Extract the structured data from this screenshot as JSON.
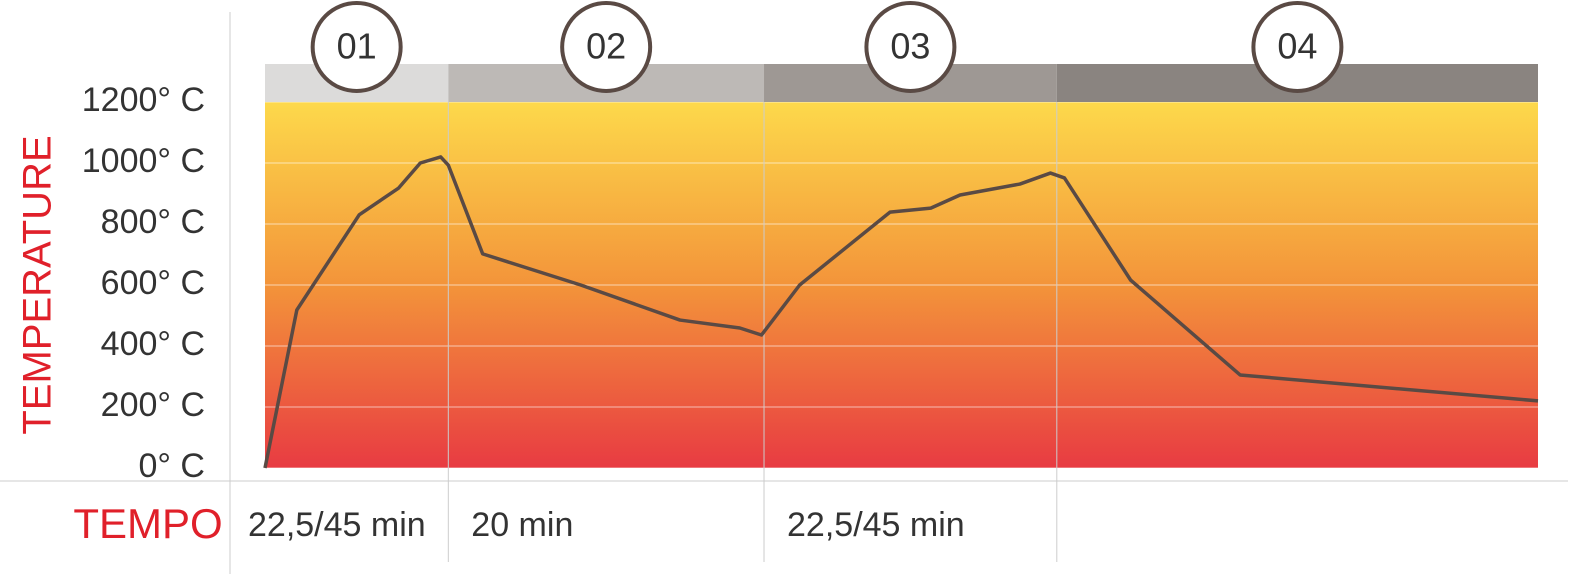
{
  "chart_data": {
    "type": "line",
    "y_label": "TEMPERATURE",
    "x_label": "TEMPO",
    "ylim": [
      0,
      1200
    ],
    "yticks": [
      {
        "value": 0,
        "label": "0° C"
      },
      {
        "value": 200,
        "label": "200° C"
      },
      {
        "value": 400,
        "label": "400° C"
      },
      {
        "value": 600,
        "label": "600° C"
      },
      {
        "value": 800,
        "label": "800° C"
      },
      {
        "value": 1000,
        "label": "1000° C"
      },
      {
        "value": 1200,
        "label": "1200° C"
      }
    ],
    "xlim": [
      0,
      100
    ],
    "grid": true,
    "phases": [
      {
        "label": "01",
        "start": 0,
        "end": 14.4,
        "color": "#dcdbda",
        "duration": "22,5/45 min"
      },
      {
        "label": "02",
        "start": 14.4,
        "end": 39.2,
        "color": "#bdb9b6",
        "duration": "20 min"
      },
      {
        "label": "03",
        "start": 39.2,
        "end": 62.2,
        "color": "#9e9894",
        "duration": "22,5/45 min"
      },
      {
        "label": "04",
        "start": 62.2,
        "end": 100,
        "color": "#8a8480"
      }
    ],
    "series": [
      {
        "color": "#5a4a44",
        "x": [
          0,
          2.5,
          7.4,
          10.5,
          12.2,
          13.8,
          14.4,
          17.1,
          24.8,
          32.6,
          37.3,
          39.0,
          42.0,
          49.1,
          52.3,
          54.6,
          59.3,
          61.7,
          62.8,
          68.0,
          76.6,
          100
        ],
        "values": [
          0,
          518,
          830,
          918,
          1000,
          1020,
          993,
          702,
          600,
          485,
          459,
          436,
          600,
          839,
          852,
          895,
          931,
          967,
          951,
          616,
          305,
          220
        ]
      }
    ]
  }
}
